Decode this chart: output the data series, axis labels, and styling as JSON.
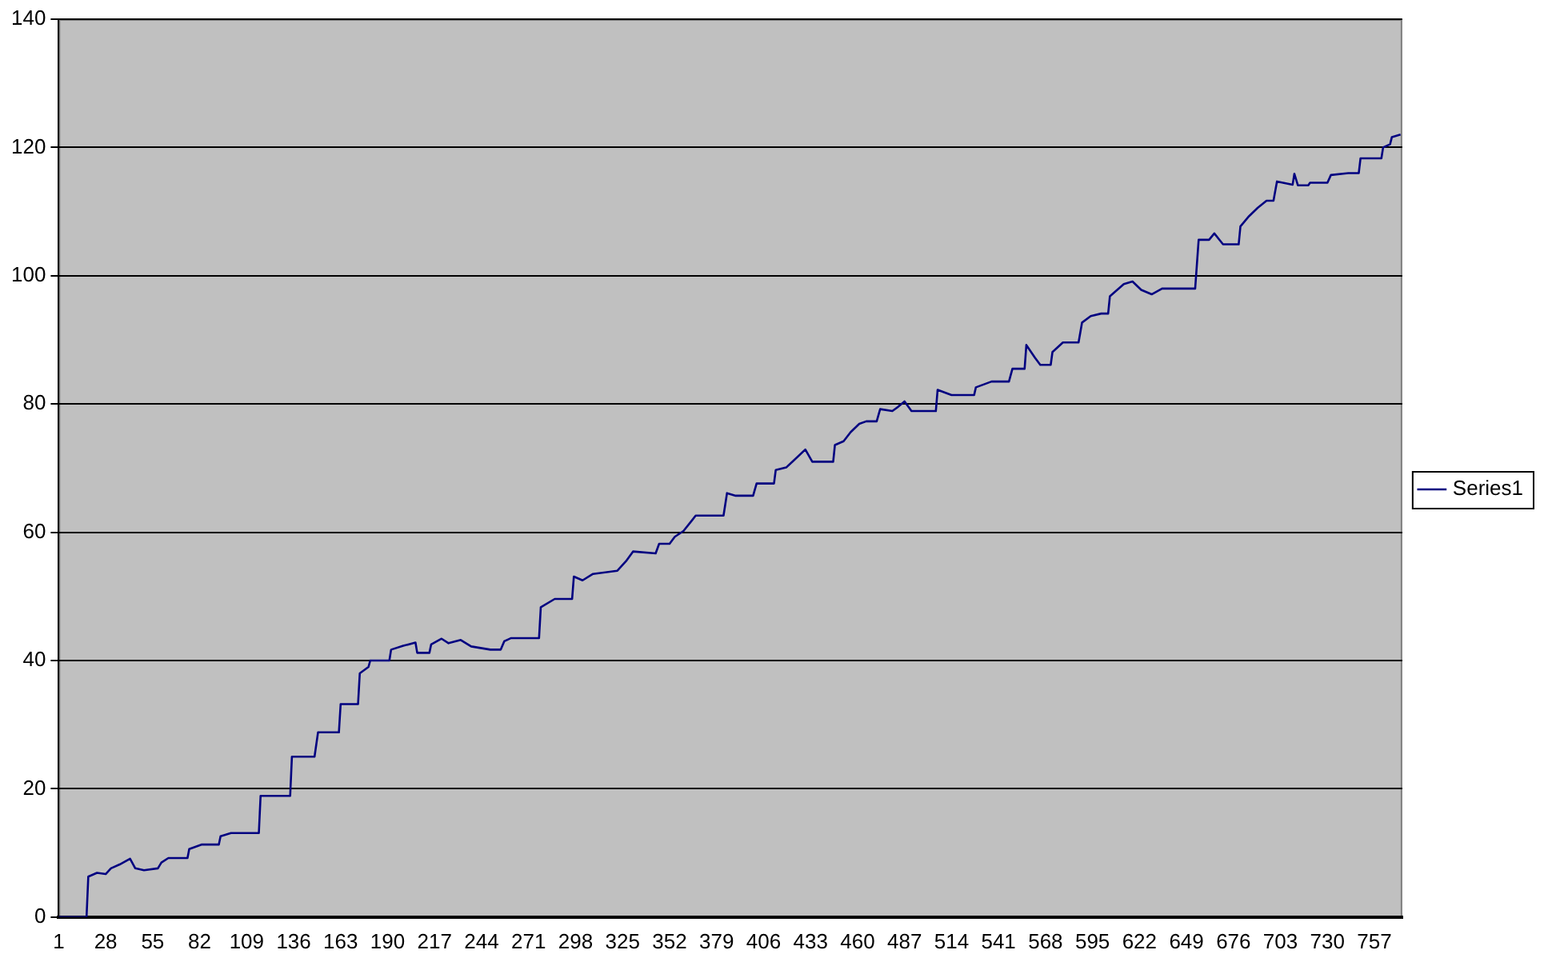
{
  "chart_data": {
    "type": "line",
    "x": [
      1,
      17,
      18,
      23,
      28,
      31,
      36,
      42,
      45,
      50,
      58,
      60,
      64,
      75,
      76,
      83,
      93,
      94,
      100,
      116,
      117,
      134,
      135,
      148,
      150,
      162,
      163,
      173,
      174,
      179,
      180,
      191,
      192,
      199,
      206,
      207,
      214,
      215,
      221,
      225,
      232,
      238,
      249,
      255,
      257,
      261,
      277,
      278,
      286,
      296,
      297,
      302,
      308,
      322,
      327,
      331,
      344,
      346,
      352,
      355,
      360,
      365,
      367,
      383,
      385,
      390,
      400,
      402,
      412,
      413,
      419,
      423,
      430,
      434,
      446,
      447,
      452,
      456,
      461,
      465,
      471,
      473,
      480,
      483,
      487,
      491,
      505,
      506,
      514,
      527,
      528,
      537,
      547,
      549,
      556,
      557,
      562,
      565,
      571,
      572,
      578,
      587,
      589,
      594,
      600,
      604,
      605,
      613,
      618,
      623,
      629,
      635,
      654,
      656,
      662,
      665,
      670,
      679,
      680,
      685,
      690,
      695,
      699,
      701,
      710,
      711,
      713,
      719,
      720,
      730,
      732,
      742,
      748,
      749,
      761,
      762,
      766,
      767,
      772
    ],
    "series": [
      {
        "name": "Series1",
        "color": "#000080",
        "values": [
          0,
          0,
          6.3,
          6.9,
          6.7,
          7.6,
          8.2,
          9.1,
          7.6,
          7.3,
          7.6,
          8.5,
          9.2,
          9.2,
          10.6,
          11.3,
          11.3,
          12.6,
          13.1,
          13.1,
          18.9,
          18.9,
          25.0,
          25.0,
          28.8,
          28.8,
          33.2,
          33.2,
          38.0,
          39.0,
          40.0,
          40.0,
          41.7,
          42.3,
          42.8,
          41.2,
          41.2,
          42.5,
          43.4,
          42.7,
          43.2,
          42.2,
          41.7,
          41.7,
          43.0,
          43.5,
          43.5,
          48.3,
          49.6,
          49.6,
          53.1,
          52.5,
          53.5,
          54.0,
          55.5,
          57.0,
          56.7,
          58.2,
          58.2,
          59.3,
          60.2,
          61.9,
          62.6,
          62.6,
          66.1,
          65.7,
          65.7,
          67.6,
          67.6,
          69.7,
          70.1,
          71.1,
          72.9,
          71.0,
          71.0,
          73.6,
          74.2,
          75.6,
          76.9,
          77.3,
          77.3,
          79.2,
          78.9,
          79.5,
          80.4,
          78.9,
          78.9,
          82.2,
          81.4,
          81.4,
          82.6,
          83.5,
          83.5,
          85.5,
          85.5,
          89.2,
          87.2,
          86.1,
          86.1,
          88.1,
          89.6,
          89.6,
          92.7,
          93.7,
          94.1,
          94.1,
          96.8,
          98.7,
          99.1,
          97.8,
          97.1,
          98.0,
          98.0,
          105.6,
          105.6,
          106.6,
          104.9,
          104.9,
          107.7,
          109.3,
          110.6,
          111.7,
          111.7,
          114.7,
          114.2,
          115.9,
          114.1,
          114.1,
          114.5,
          114.5,
          115.7,
          116.0,
          116.0,
          118.3,
          118.3,
          120.0,
          120.5,
          121.6,
          122.0
        ]
      }
    ],
    "xlim": [
      1,
      773
    ],
    "xticks": [
      1,
      28,
      55,
      82,
      109,
      136,
      163,
      190,
      217,
      244,
      271,
      298,
      325,
      352,
      379,
      406,
      433,
      460,
      487,
      514,
      541,
      568,
      595,
      622,
      649,
      676,
      703,
      730,
      757
    ],
    "ylim": [
      0,
      140
    ],
    "yticks": [
      0,
      20,
      40,
      60,
      80,
      100,
      120,
      140
    ],
    "grid": "y",
    "legend": "right",
    "marker": "none",
    "line_style": "solid"
  }
}
